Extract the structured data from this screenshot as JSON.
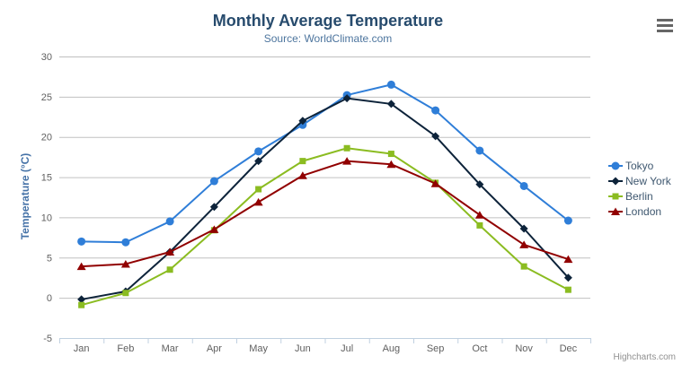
{
  "icons": {
    "export_menu": "hamburger-menu-icon"
  },
  "credits": {
    "label": "Highcharts.com"
  },
  "chart_data": {
    "type": "line",
    "title": "Monthly Average Temperature",
    "subtitle": "Source: WorldClimate.com",
    "xlabel": "",
    "ylabel": "Temperature (°C)",
    "categories": [
      "Jan",
      "Feb",
      "Mar",
      "Apr",
      "May",
      "Jun",
      "Jul",
      "Aug",
      "Sep",
      "Oct",
      "Nov",
      "Dec"
    ],
    "series": [
      {
        "name": "Tokyo",
        "color": "#2f7ed8",
        "marker": "circle",
        "values": [
          7.0,
          6.9,
          9.5,
          14.5,
          18.2,
          21.5,
          25.2,
          26.5,
          23.3,
          18.3,
          13.9,
          9.6
        ]
      },
      {
        "name": "New York",
        "color": "#0d233a",
        "marker": "diamond",
        "values": [
          -0.2,
          0.8,
          5.7,
          11.3,
          17.0,
          22.0,
          24.8,
          24.1,
          20.1,
          14.1,
          8.6,
          2.5
        ]
      },
      {
        "name": "Berlin",
        "color": "#8bbc21",
        "marker": "square",
        "values": [
          -0.9,
          0.6,
          3.5,
          8.4,
          13.5,
          17.0,
          18.6,
          17.9,
          14.3,
          9.0,
          3.9,
          1.0
        ]
      },
      {
        "name": "London",
        "color": "#910000",
        "marker": "triangle",
        "values": [
          3.9,
          4.2,
          5.7,
          8.5,
          11.9,
          15.2,
          17.0,
          16.6,
          14.2,
          10.3,
          6.6,
          4.8
        ]
      }
    ],
    "ylim": [
      -5,
      30
    ],
    "ytick_interval": 5,
    "grid": true,
    "legend_position": "right",
    "colors": {
      "title": "#274b6d",
      "subtitle": "#4d759e",
      "axis_title": "#4572a7",
      "axis_labels": "#606060",
      "gridline": "#C0C0C0",
      "axis_line": "#C0D0E0",
      "legend_text": "#3E576F",
      "credits": "#909090",
      "menu_icon": "#666666"
    }
  }
}
